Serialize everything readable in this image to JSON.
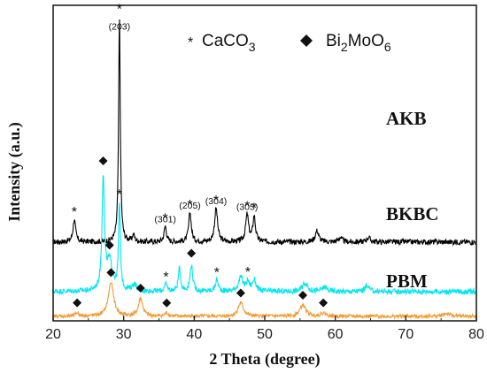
{
  "chart_data": {
    "type": "line",
    "xlabel": "2 Theta (degree)",
    "ylabel": "Intensity (a.u.)",
    "xlim": [
      20,
      80
    ],
    "x_ticks": [
      20,
      30,
      40,
      50,
      60,
      70,
      80
    ],
    "grid": false,
    "legend": {
      "position": "top-right",
      "entries": [
        {
          "marker": "*",
          "label": "CaCO3",
          "rich": [
            "CaCO",
            "3"
          ]
        },
        {
          "marker": "diamond",
          "label": "Bi2MoO6",
          "rich": [
            "Bi",
            "2",
            "MoO",
            "6"
          ]
        }
      ]
    },
    "series": [
      {
        "name": "AKB",
        "color": "#000000",
        "baseline": 0.33,
        "noise": 0.012,
        "peaks": [
          {
            "x": 23.0,
            "h": 0.1,
            "w": 0.22
          },
          {
            "x": 29.4,
            "h": 1.0,
            "w": 0.14
          },
          {
            "x": 31.4,
            "h": 0.03,
            "w": 0.2
          },
          {
            "x": 35.9,
            "h": 0.07,
            "w": 0.2
          },
          {
            "x": 39.4,
            "h": 0.13,
            "w": 0.22
          },
          {
            "x": 43.1,
            "h": 0.15,
            "w": 0.25
          },
          {
            "x": 47.5,
            "h": 0.12,
            "w": 0.25
          },
          {
            "x": 48.5,
            "h": 0.11,
            "w": 0.22
          },
          {
            "x": 57.4,
            "h": 0.05,
            "w": 0.3
          },
          {
            "x": 60.7,
            "h": 0.02,
            "w": 0.3
          },
          {
            "x": 64.7,
            "h": 0.02,
            "w": 0.3
          }
        ],
        "star_markers": [
          23.0,
          29.4,
          35.9,
          39.4,
          43.1,
          47.5,
          48.5
        ],
        "hkl_labels": [
          {
            "x": 29.4,
            "text": "(203)"
          },
          {
            "x": 35.9,
            "text": "(301)"
          },
          {
            "x": 39.4,
            "text": "(205)"
          },
          {
            "x": 43.1,
            "text": "(304)"
          },
          {
            "x": 47.5,
            "text": "(305)"
          }
        ]
      },
      {
        "name": "BKBC",
        "color": "#00e5f0",
        "baseline": 0.11,
        "noise": 0.012,
        "peaks": [
          {
            "x": 27.1,
            "h": 0.5,
            "w": 0.2
          },
          {
            "x": 28.0,
            "h": 0.13,
            "w": 0.5
          },
          {
            "x": 29.4,
            "h": 0.38,
            "w": 0.15
          },
          {
            "x": 31.5,
            "h": 0.03,
            "w": 0.4
          },
          {
            "x": 36.0,
            "h": 0.03,
            "w": 0.25
          },
          {
            "x": 37.9,
            "h": 0.1,
            "w": 0.2
          },
          {
            "x": 39.6,
            "h": 0.12,
            "w": 0.22
          },
          {
            "x": 43.2,
            "h": 0.05,
            "w": 0.25
          },
          {
            "x": 46.6,
            "h": 0.06,
            "w": 0.4
          },
          {
            "x": 47.6,
            "h": 0.04,
            "w": 0.25
          },
          {
            "x": 48.5,
            "h": 0.05,
            "w": 0.3
          },
          {
            "x": 55.7,
            "h": 0.04,
            "w": 0.4
          },
          {
            "x": 58.5,
            "h": 0.02,
            "w": 0.4
          },
          {
            "x": 64.5,
            "h": 0.03,
            "w": 0.3
          }
        ],
        "star_markers": [
          29.4,
          36.0,
          43.2,
          47.6
        ],
        "diamond_markers": [
          27.1,
          28.0,
          39.6
        ]
      },
      {
        "name": "PBM",
        "color": "#f29a2e",
        "baseline": 0.0,
        "noise": 0.008,
        "peaks": [
          {
            "x": 23.4,
            "h": 0.015,
            "w": 0.3
          },
          {
            "x": 28.2,
            "h": 0.15,
            "w": 0.45
          },
          {
            "x": 32.4,
            "h": 0.08,
            "w": 0.35
          },
          {
            "x": 36.1,
            "h": 0.015,
            "w": 0.3
          },
          {
            "x": 46.6,
            "h": 0.06,
            "w": 0.45
          },
          {
            "x": 55.4,
            "h": 0.05,
            "w": 0.5
          },
          {
            "x": 58.3,
            "h": 0.015,
            "w": 0.4
          },
          {
            "x": 75.8,
            "h": 0.012,
            "w": 0.6
          }
        ],
        "diamond_markers": [
          23.4,
          28.2,
          32.4,
          36.1,
          46.6,
          55.4,
          58.3
        ]
      }
    ]
  }
}
